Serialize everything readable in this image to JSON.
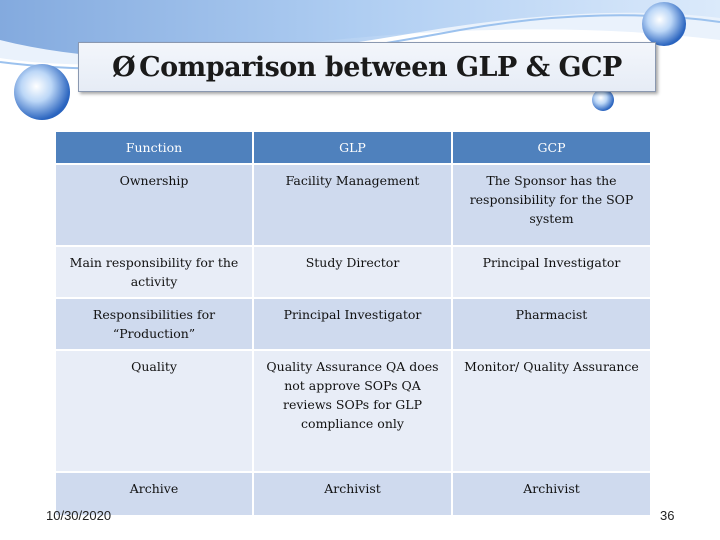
{
  "slide": {
    "title_bullet": "Ø",
    "title": "Comparison between GLP & GCP",
    "date": "10/30/2020",
    "page_number": "36"
  },
  "table": {
    "headers": [
      "Function",
      "GLP",
      "GCP"
    ],
    "rows": [
      [
        "Ownership",
        "Facility Management",
        "The Sponsor has the responsibility for the SOP system"
      ],
      [
        "Main responsibility for the activity",
        "Study Director",
        "Principal Investigator"
      ],
      [
        "Responsibilities for “Production”",
        "Principal Investigator",
        "Pharmacist"
      ],
      [
        "Quality",
        "Quality Assurance QA does not approve SOPs QA reviews SOPs for GLP compliance only",
        "Monitor/  Quality Assurance"
      ],
      [
        "Archive",
        "Archivist",
        "Archivist"
      ]
    ]
  },
  "colors": {
    "header": "#4f81bd",
    "row_dark": "#cfdaee",
    "row_light": "#e8edf7",
    "background_swoosh": "#5b8ed6"
  }
}
